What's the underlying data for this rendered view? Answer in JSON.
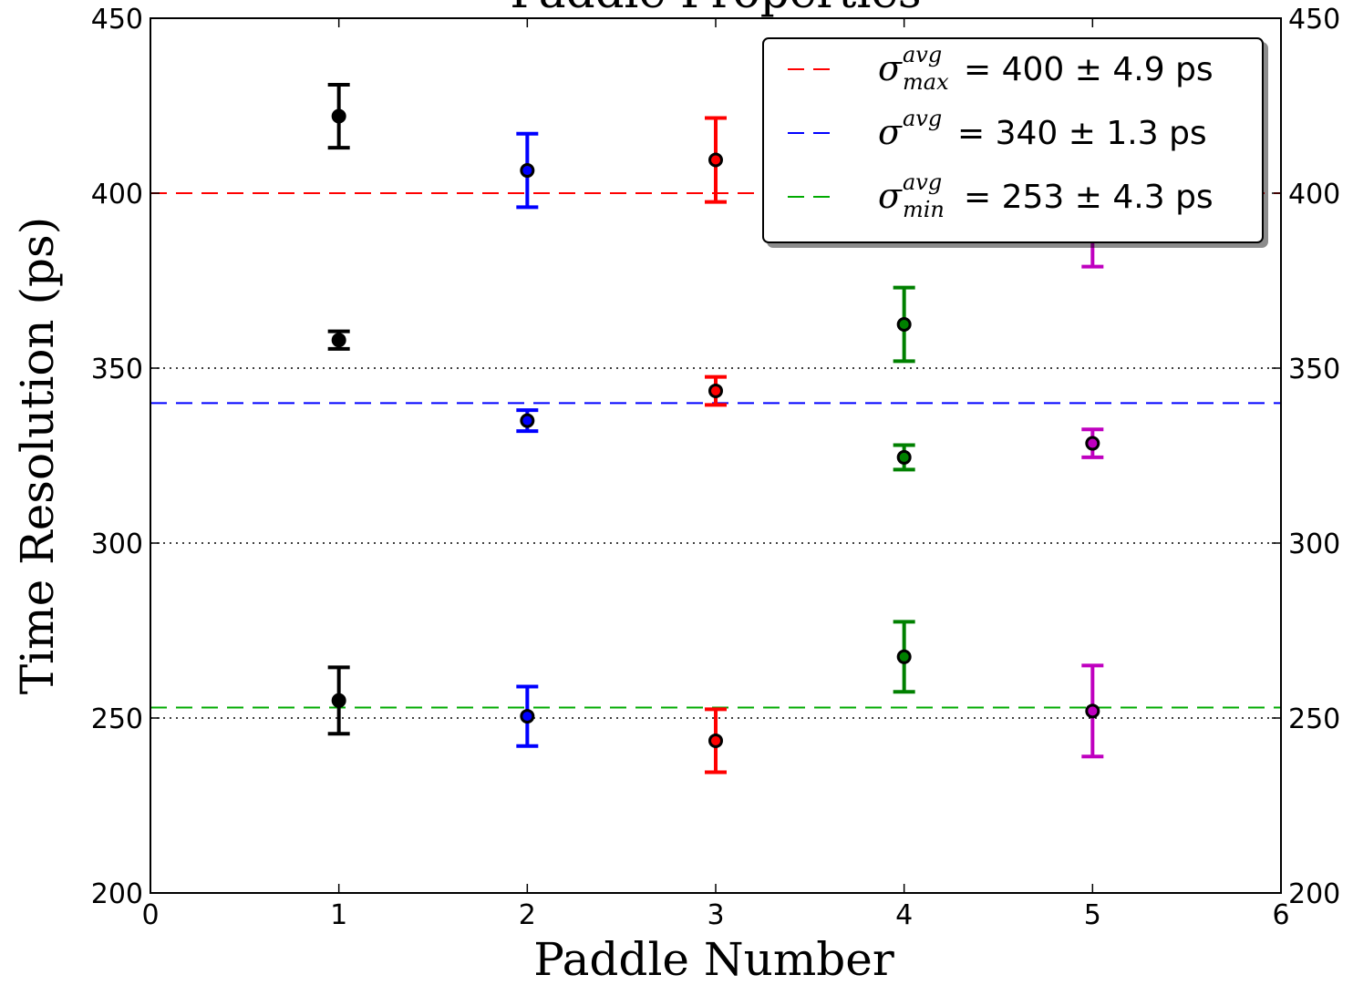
{
  "chart_data": {
    "type": "scatter",
    "title": "Paddle Properties",
    "xlabel": "Paddle Number",
    "ylabel": "Time Resolution (ps)",
    "xlim": [
      0,
      6
    ],
    "ylim": [
      200,
      450
    ],
    "x_ticks": [
      "0",
      "1",
      "2",
      "3",
      "4",
      "5",
      "6"
    ],
    "y_ticks": [
      "200",
      "250",
      "300",
      "350",
      "400",
      "450"
    ],
    "grid": "dotted horizontal at 250, 300, 350",
    "secondary_y_axis": true,
    "legend_position": "top-right",
    "reference_lines": [
      {
        "label_symbol": "σ",
        "label_sup": "avg",
        "label_sub": "max",
        "label_rest": "= 400 ± 4.9 ps",
        "value": 400,
        "color": "#ff0000",
        "style": "dashed"
      },
      {
        "label_symbol": "σ",
        "label_sup": "avg",
        "label_sub": "",
        "label_rest": "= 340 ± 1.3 ps",
        "value": 340,
        "color": "#0000ff",
        "style": "dashed"
      },
      {
        "label_symbol": "σ",
        "label_sup": "avg",
        "label_sub": "min",
        "label_rest": "= 253 ± 4.3 ps",
        "value": 253,
        "color": "#00aa00",
        "style": "dashed"
      }
    ],
    "points": [
      {
        "x": 1,
        "y": 422,
        "err": 9,
        "color": "#000000"
      },
      {
        "x": 1,
        "y": 358,
        "err": 2.5,
        "color": "#000000"
      },
      {
        "x": 1,
        "y": 255,
        "err": 9.5,
        "color": "#000000"
      },
      {
        "x": 2,
        "y": 406.5,
        "err": 10.5,
        "color": "#0000ff"
      },
      {
        "x": 2,
        "y": 335,
        "err": 3,
        "color": "#0000ff"
      },
      {
        "x": 2,
        "y": 250.5,
        "err": 8.5,
        "color": "#0000ff"
      },
      {
        "x": 3,
        "y": 409.5,
        "err": 12,
        "color": "#ff0000"
      },
      {
        "x": 3,
        "y": 343.5,
        "err": 4,
        "color": "#ff0000"
      },
      {
        "x": 3,
        "y": 243.5,
        "err": 9,
        "color": "#ff0000"
      },
      {
        "x": 4,
        "y": 362.5,
        "err": 10.5,
        "color": "#008000"
      },
      {
        "x": 4,
        "y": 324.5,
        "err": 3.5,
        "color": "#008000"
      },
      {
        "x": 4,
        "y": 267.5,
        "err": 10,
        "color": "#008000"
      },
      {
        "x": 5,
        "y": 389,
        "err": 10,
        "color": "#bf00bf"
      },
      {
        "x": 5,
        "y": 328.5,
        "err": 4,
        "color": "#bf00bf"
      },
      {
        "x": 5,
        "y": 252,
        "err": 13,
        "color": "#bf00bf"
      }
    ]
  }
}
